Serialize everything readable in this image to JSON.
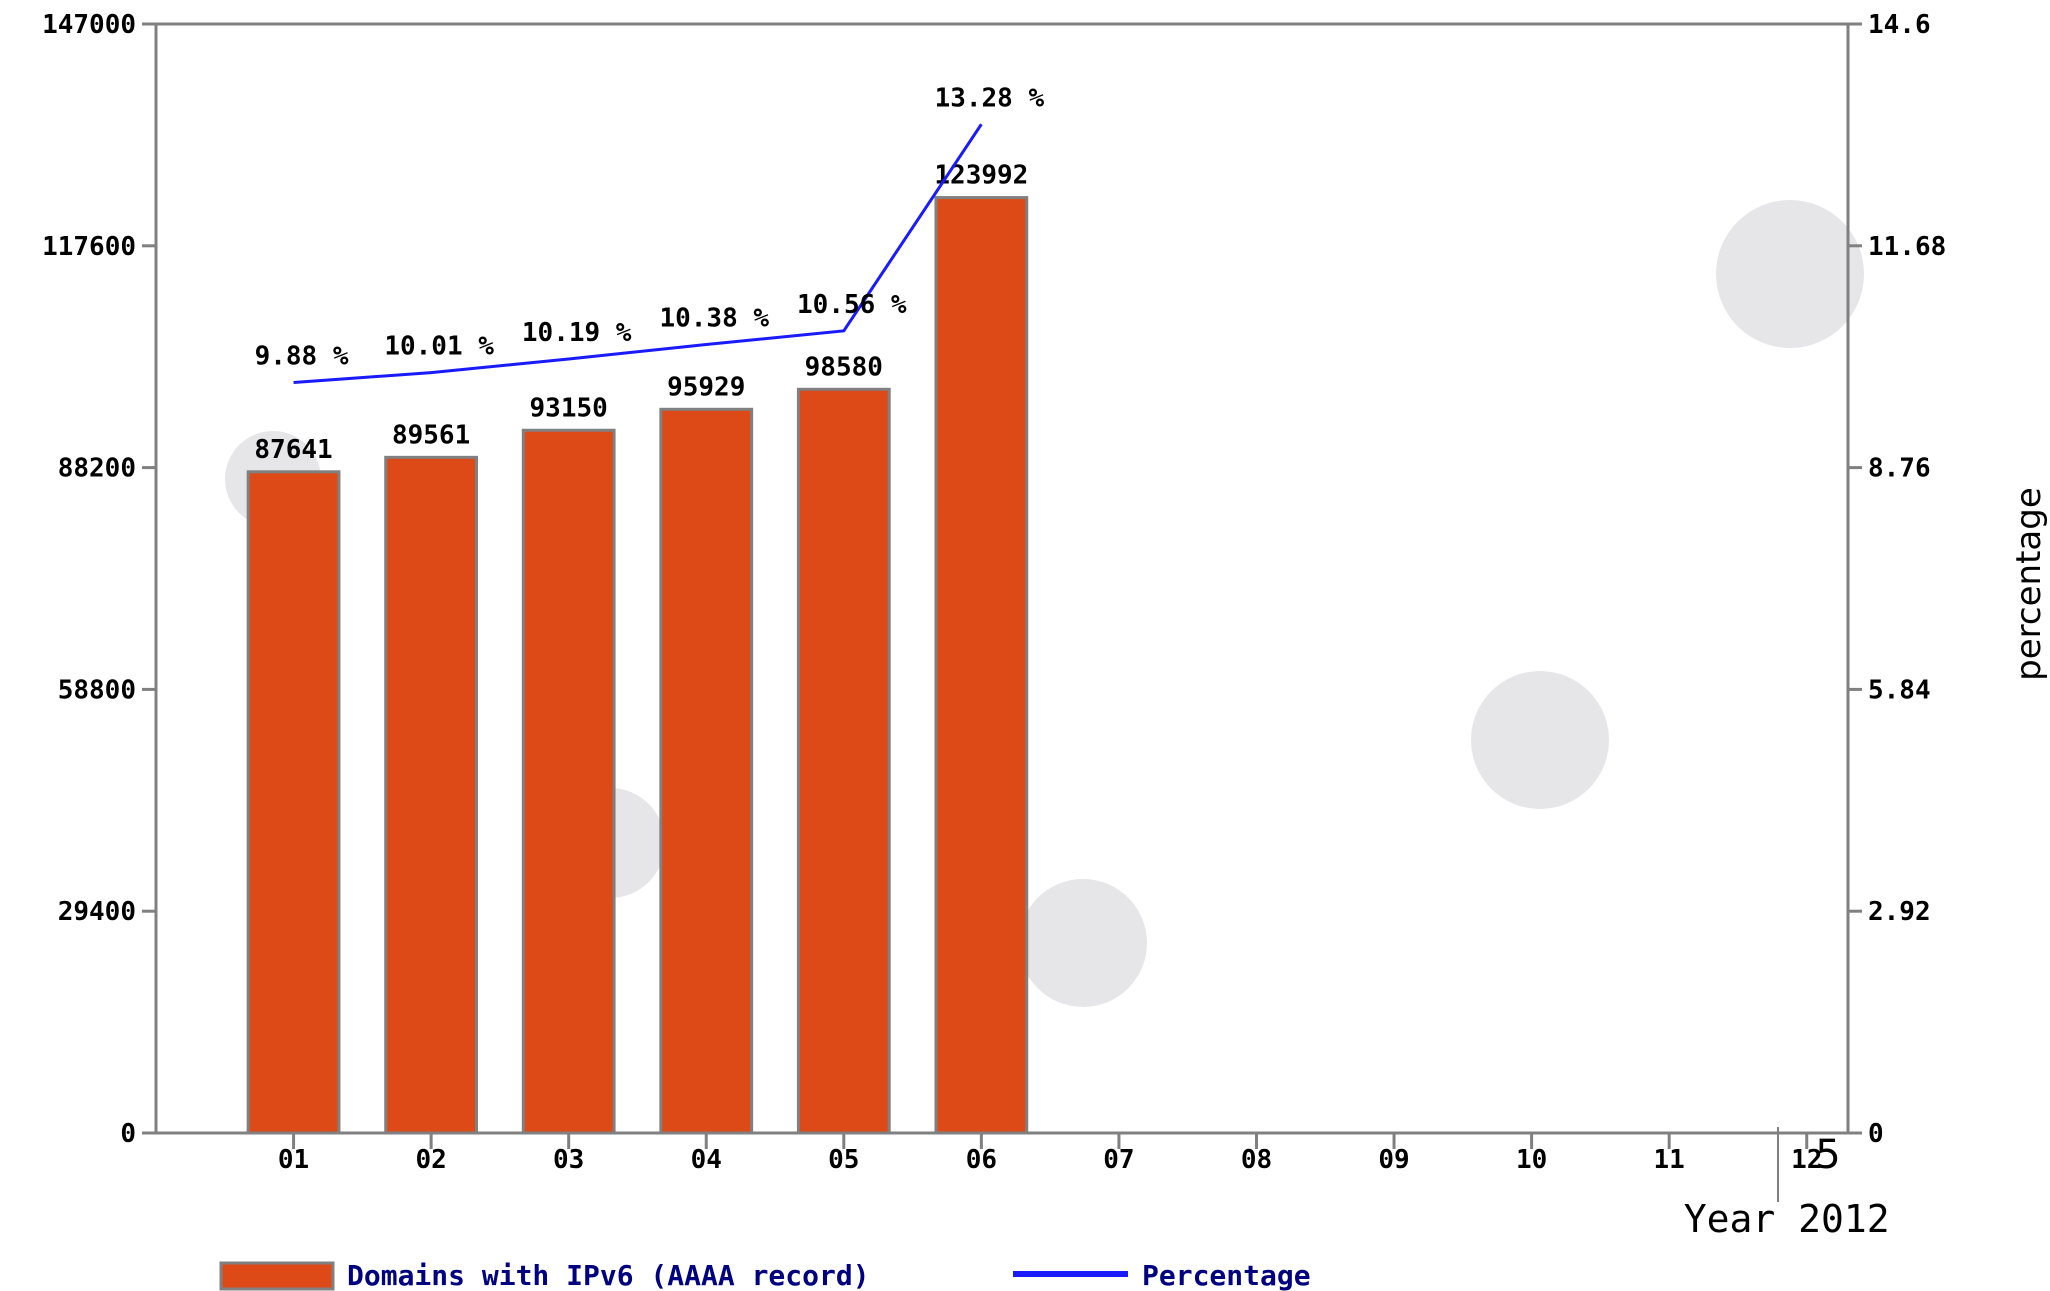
{
  "colors": {
    "bar": "#dd4a17",
    "bar_stroke": "#808080",
    "line": "#1a1aff",
    "axis": "#808080",
    "text": "#000000",
    "legend_text": "#000080",
    "blob": "#e6e6e9"
  },
  "chart_data": {
    "type": "bar",
    "categories": [
      "01",
      "02",
      "03",
      "04",
      "05",
      "06",
      "07",
      "08",
      "09",
      "10",
      "11",
      "12"
    ],
    "series": [
      {
        "name": "Domains with IPv6 (AAAA record)",
        "type": "bar",
        "axis": "left",
        "values": [
          87641,
          89561,
          93150,
          95929,
          98580,
          123992,
          null,
          null,
          null,
          null,
          null,
          null
        ],
        "labels": [
          "87641",
          "89561",
          "93150",
          "95929",
          "98580",
          "123992"
        ]
      },
      {
        "name": "Percentage",
        "type": "line",
        "axis": "right",
        "values": [
          9.88,
          10.01,
          10.19,
          10.38,
          10.56,
          13.28,
          null,
          null,
          null,
          null,
          null,
          null
        ],
        "labels": [
          "9.88 %",
          "10.01 %",
          "10.19 %",
          "10.38 %",
          "10.56 %",
          "13.28 %"
        ]
      }
    ],
    "xlabel": "Year 2012",
    "ylabel": "",
    "y2label": "percentage",
    "ylim": [
      0,
      147000
    ],
    "y2lim": [
      0,
      14.6
    ],
    "yticks": [
      "0",
      "29400",
      "58800",
      "88200",
      "117600",
      "147000"
    ],
    "y2ticks": [
      "0",
      "2.92",
      "5.84",
      "8.76",
      "11.68",
      "14.6"
    ],
    "legend_position": "bottom-left",
    "grid": false
  },
  "annotation": "5"
}
